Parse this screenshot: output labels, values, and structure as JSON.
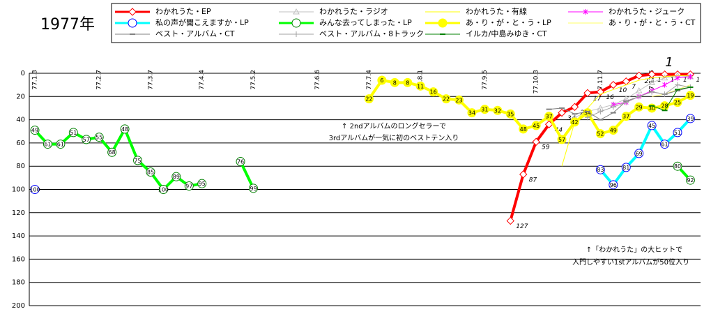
{
  "chart_data": {
    "type": "line",
    "title": "1977年",
    "categories": [
      "77.1.3",
      null,
      null,
      null,
      null,
      "77.2.7",
      null,
      null,
      null,
      "77.3.7",
      null,
      null,
      null,
      "77.4.4",
      null,
      null,
      null,
      "77.5.2",
      null,
      null,
      null,
      null,
      "77.6.6",
      null,
      null,
      null,
      "77.7.4",
      null,
      null,
      null,
      "77.8.1",
      null,
      null,
      null,
      null,
      "77.9.5",
      null,
      null,
      null,
      "77.10.3",
      null,
      null,
      null,
      null,
      "77.11.7",
      null,
      null,
      null,
      "77.12.5",
      null,
      null,
      null
    ],
    "ylim": [
      0,
      200
    ],
    "yticks": [
      0,
      20,
      40,
      60,
      80,
      100,
      120,
      140,
      160,
      180,
      200
    ],
    "y_inverted": true,
    "grid": true,
    "series": [
      {
        "name": "わかれうた・EP",
        "color": "#ff0000",
        "marker": "diamond",
        "width": 4,
        "labels": true,
        "values": [
          null,
          null,
          null,
          null,
          null,
          null,
          null,
          null,
          null,
          null,
          null,
          null,
          null,
          null,
          null,
          null,
          null,
          null,
          null,
          null,
          null,
          null,
          null,
          null,
          null,
          null,
          null,
          null,
          null,
          null,
          null,
          null,
          null,
          null,
          null,
          null,
          null,
          127,
          87,
          59,
          44,
          34,
          29,
          17,
          16,
          10,
          7,
          2,
          1,
          1,
          1,
          1
        ]
      },
      {
        "name": "わかれうた・ラジオ",
        "color": "#c0c0c0",
        "marker": "triangle",
        "width": 1,
        "values": [
          null,
          null,
          null,
          null,
          null,
          null,
          null,
          null,
          null,
          null,
          null,
          null,
          null,
          null,
          null,
          null,
          null,
          null,
          null,
          null,
          null,
          null,
          null,
          null,
          null,
          null,
          null,
          null,
          null,
          null,
          null,
          null,
          null,
          null,
          null,
          null,
          null,
          null,
          null,
          null,
          null,
          null,
          38,
          33,
          30,
          27,
          22,
          15,
          8,
          4,
          2,
          3
        ]
      },
      {
        "name": "わかれうた・有線",
        "color": "#ffff00",
        "marker": "none",
        "width": 1,
        "values": [
          null,
          null,
          null,
          null,
          null,
          null,
          null,
          null,
          null,
          null,
          null,
          null,
          null,
          null,
          null,
          null,
          null,
          null,
          null,
          null,
          null,
          null,
          null,
          null,
          null,
          null,
          null,
          null,
          null,
          null,
          null,
          null,
          null,
          null,
          null,
          null,
          null,
          null,
          null,
          null,
          null,
          80,
          42,
          30,
          18,
          14,
          10,
          6,
          4,
          3,
          2,
          2
        ]
      },
      {
        "name": "わかれうた・ジューク",
        "color": "#ff00ff",
        "marker": "star",
        "width": 1,
        "values": [
          null,
          null,
          null,
          null,
          null,
          null,
          null,
          null,
          null,
          null,
          null,
          null,
          null,
          null,
          null,
          null,
          null,
          null,
          null,
          null,
          null,
          null,
          null,
          null,
          null,
          null,
          null,
          null,
          null,
          null,
          null,
          null,
          null,
          null,
          null,
          null,
          null,
          null,
          null,
          null,
          null,
          null,
          null,
          null,
          null,
          27,
          25,
          20,
          15,
          10,
          4,
          3
        ]
      },
      {
        "name": "私の声が聞こえますか・LP",
        "color": "#00ffff",
        "marker": "circle",
        "marker_color": "#0000ff",
        "width": 4,
        "labels": true,
        "values": [
          100,
          null,
          null,
          null,
          null,
          null,
          null,
          null,
          null,
          null,
          null,
          null,
          null,
          null,
          null,
          null,
          null,
          null,
          null,
          null,
          null,
          null,
          null,
          null,
          null,
          null,
          null,
          null,
          null,
          null,
          null,
          null,
          null,
          null,
          null,
          null,
          null,
          null,
          null,
          null,
          null,
          null,
          null,
          null,
          83,
          96,
          81,
          69,
          45,
          61,
          51,
          39
        ]
      },
      {
        "name": "みんな去ってしまった・LP",
        "color": "#00ff00",
        "marker": "circle",
        "marker_color": "#008000",
        "width": 4,
        "labels": true,
        "values": [
          49,
          61,
          61,
          51,
          57,
          55,
          68,
          48,
          75,
          85,
          100,
          89,
          97,
          95,
          null,
          null,
          76,
          99,
          null,
          null,
          null,
          null,
          null,
          null,
          null,
          null,
          null,
          null,
          null,
          null,
          null,
          null,
          null,
          null,
          null,
          null,
          null,
          null,
          null,
          null,
          null,
          null,
          null,
          null,
          null,
          null,
          null,
          null,
          null,
          null,
          80,
          92
        ]
      },
      {
        "name": "あ・り・が・と・う・LP",
        "color": "#ffff00",
        "marker": "circle",
        "marker_color": "#ffff00",
        "width": 4,
        "labels": true,
        "values": [
          null,
          null,
          null,
          null,
          null,
          null,
          null,
          null,
          null,
          null,
          null,
          null,
          null,
          null,
          null,
          null,
          null,
          null,
          null,
          null,
          null,
          null,
          null,
          null,
          null,
          null,
          22,
          6,
          8,
          8,
          11,
          16,
          22,
          23,
          34,
          31,
          32,
          35,
          48,
          45,
          37,
          57,
          42,
          34,
          52,
          49,
          37,
          29,
          30,
          28,
          25,
          19
        ]
      },
      {
        "name": "あ・り・が・と・う・CT",
        "color": "#ffff66",
        "marker": "none",
        "width": 1,
        "values": [
          null,
          null,
          null,
          null,
          null,
          null,
          null,
          null,
          null,
          null,
          null,
          null,
          null,
          null,
          null,
          null,
          null,
          null,
          null,
          null,
          null,
          null,
          null,
          null,
          null,
          null,
          null,
          null,
          null,
          null,
          null,
          null,
          null,
          null,
          null,
          null,
          null,
          null,
          null,
          null,
          null,
          null,
          null,
          null,
          null,
          null,
          null,
          null,
          20,
          18,
          14,
          10
        ]
      },
      {
        "name": "ベスト・アルバム・CT",
        "color": "#808080",
        "marker": "dash",
        "width": 1,
        "values": [
          null,
          null,
          null,
          null,
          null,
          null,
          null,
          null,
          null,
          null,
          null,
          null,
          null,
          null,
          null,
          null,
          null,
          null,
          null,
          null,
          null,
          null,
          null,
          null,
          null,
          null,
          null,
          null,
          null,
          null,
          null,
          null,
          null,
          null,
          null,
          null,
          null,
          null,
          null,
          null,
          31,
          30,
          35,
          33,
          40,
          34,
          24,
          20,
          16,
          18,
          15,
          12
        ]
      },
      {
        "name": "ベスト・アルバム・8トラック",
        "color": "#a0a0a0",
        "marker": "plus",
        "width": 1,
        "values": [
          null,
          null,
          null,
          null,
          null,
          null,
          null,
          null,
          null,
          null,
          null,
          null,
          null,
          null,
          null,
          null,
          null,
          null,
          null,
          null,
          null,
          null,
          null,
          null,
          null,
          null,
          null,
          null,
          null,
          null,
          null,
          null,
          null,
          null,
          null,
          null,
          null,
          null,
          null,
          null,
          null,
          null,
          null,
          38,
          33,
          29,
          25,
          20,
          16,
          18,
          10,
          12
        ]
      },
      {
        "name": "イルカ/中島みゆき・CT",
        "color": "#008000",
        "marker": "dash",
        "width": 1,
        "values": [
          null,
          null,
          null,
          null,
          null,
          null,
          null,
          null,
          null,
          null,
          null,
          null,
          null,
          null,
          null,
          null,
          null,
          null,
          null,
          null,
          null,
          null,
          null,
          null,
          null,
          null,
          null,
          null,
          null,
          null,
          null,
          null,
          null,
          null,
          null,
          null,
          null,
          null,
          null,
          null,
          null,
          null,
          null,
          null,
          null,
          null,
          null,
          null,
          28,
          32,
          14,
          12
        ]
      }
    ],
    "annotations": [
      "↑ 2ndアルバムのロングセラーで",
      "3rdアルバムが一気に初のベストテン入り",
      "↑「わかれうた」の大ヒットで",
      "入門しやすい1stアルバムが50位入り",
      "1"
    ]
  }
}
